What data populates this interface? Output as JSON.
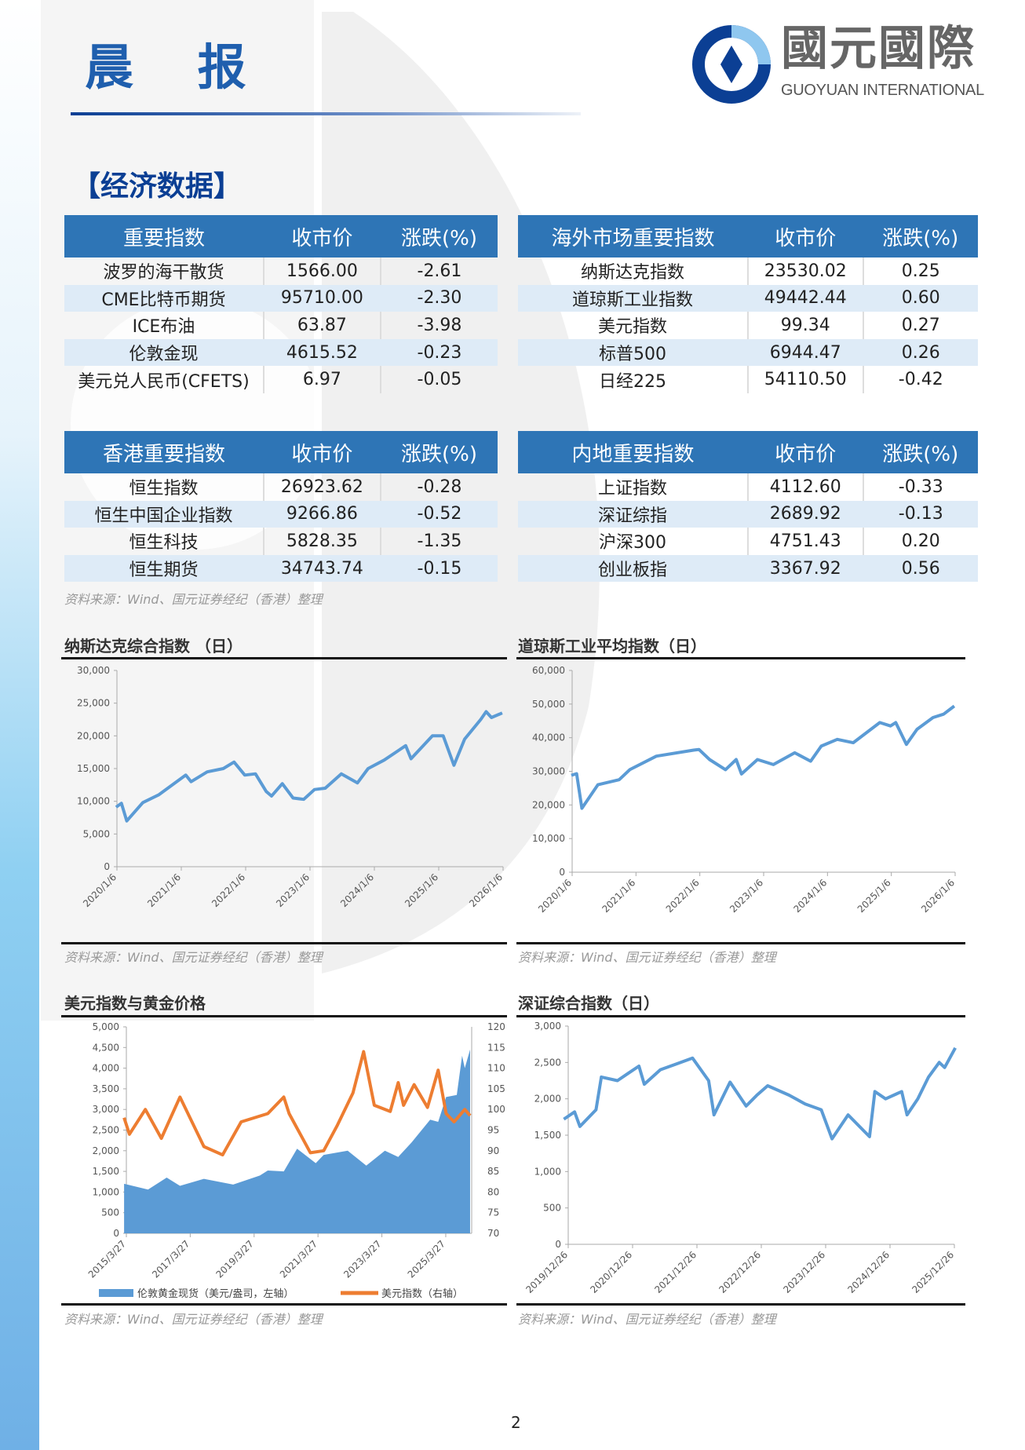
{
  "header": {
    "title": "晨 报",
    "logo_cn": "國元國際",
    "logo_en": "GUOYUAN INTERNATIONAL"
  },
  "section_title": "【经济数据】",
  "tables": [
    {
      "headers": [
        "重要指数",
        "收市价",
        "涨跌(%)"
      ],
      "rows": [
        [
          "波罗的海干散货",
          "1566.00",
          "-2.61"
        ],
        [
          "CME比特币期货",
          "95710.00",
          "-2.30"
        ],
        [
          "ICE布油",
          "63.87",
          "-3.98"
        ],
        [
          "伦敦金现",
          "4615.52",
          "-0.23"
        ],
        [
          "美元兑人民币(CFETS)",
          "6.97",
          "-0.05"
        ]
      ]
    },
    {
      "headers": [
        "海外市场重要指数",
        "收市价",
        "涨跌(%)"
      ],
      "rows": [
        [
          "纳斯达克指数",
          "23530.02",
          "0.25"
        ],
        [
          "道琼斯工业指数",
          "49442.44",
          "0.60"
        ],
        [
          "美元指数",
          "99.34",
          "0.27"
        ],
        [
          "标普500",
          "6944.47",
          "0.26"
        ],
        [
          "日经225",
          "54110.50",
          "-0.42"
        ]
      ]
    },
    {
      "headers": [
        "香港重要指数",
        "收市价",
        "涨跌(%)"
      ],
      "rows": [
        [
          "恒生指数",
          "26923.62",
          "-0.28"
        ],
        [
          "恒生中国企业指数",
          "9266.86",
          "-0.52"
        ],
        [
          "恒生科技",
          "5828.35",
          "-1.35"
        ],
        [
          "恒生期货",
          "34743.74",
          "-0.15"
        ]
      ]
    },
    {
      "headers": [
        "内地重要指数",
        "收市价",
        "涨跌(%)"
      ],
      "rows": [
        [
          "上证指数",
          "4112.60",
          "-0.33"
        ],
        [
          "深证综指",
          "2689.92",
          "-0.13"
        ],
        [
          "沪深300",
          "4751.43",
          "0.20"
        ],
        [
          "创业板指",
          "3367.92",
          "0.56"
        ]
      ]
    }
  ],
  "source": "资料来源：Wind、国元证券经纪（香港）整理",
  "page_number": "2",
  "colors": {
    "brand": "#2e75b6",
    "line": "#5b9bd5",
    "orange": "#ed7d31",
    "alt_row": "#deebf7"
  },
  "chart_data": [
    {
      "type": "line",
      "title": "纳斯达克综合指数 （日）",
      "ylim": [
        0,
        30000
      ],
      "yticks": [
        "0",
        "5,000",
        "10,000",
        "15,000",
        "20,000",
        "25,000",
        "30,000"
      ],
      "xticks": [
        "2020/1/6",
        "2021/1/6",
        "2022/1/6",
        "2023/1/6",
        "2024/1/6",
        "2025/1/6",
        "2026/1/6"
      ],
      "series": [
        {
          "points": [
            [
              "2020-01",
              9100
            ],
            [
              "2020-02",
              9700
            ],
            [
              "2020-03",
              7000
            ],
            [
              "2020-06",
              9800
            ],
            [
              "2020-09",
              11000
            ],
            [
              "2020-12",
              12800
            ],
            [
              "2021-02",
              14000
            ],
            [
              "2021-03",
              13000
            ],
            [
              "2021-06",
              14500
            ],
            [
              "2021-09",
              15000
            ],
            [
              "2021-11",
              16000
            ],
            [
              "2022-01",
              14000
            ],
            [
              "2022-03",
              14200
            ],
            [
              "2022-05",
              11500
            ],
            [
              "2022-06",
              10800
            ],
            [
              "2022-08",
              12700
            ],
            [
              "2022-10",
              10500
            ],
            [
              "2022-12",
              10300
            ],
            [
              "2023-02",
              11800
            ],
            [
              "2023-04",
              12000
            ],
            [
              "2023-07",
              14200
            ],
            [
              "2023-10",
              12800
            ],
            [
              "2023-12",
              15000
            ],
            [
              "2024-03",
              16300
            ],
            [
              "2024-07",
              18500
            ],
            [
              "2024-08",
              16500
            ],
            [
              "2024-12",
              20000
            ],
            [
              "2025-02",
              20000
            ],
            [
              "2025-04",
              15500
            ],
            [
              "2025-06",
              19500
            ],
            [
              "2025-09",
              22500
            ],
            [
              "2025-10",
              23700
            ],
            [
              "2025-11",
              22800
            ],
            [
              "2026-01",
              23500
            ]
          ]
        }
      ]
    },
    {
      "type": "line",
      "title": "道琼斯工业平均指数（日）",
      "ylim": [
        0,
        60000
      ],
      "yticks": [
        "0",
        "10,000",
        "20,000",
        "30,000",
        "40,000",
        "50,000",
        "60,000"
      ],
      "xticks": [
        "2020/1/6",
        "2021/1/6",
        "2022/1/6",
        "2023/1/6",
        "2024/1/6",
        "2025/1/6",
        "2026/1/6"
      ],
      "series": [
        {
          "points": [
            [
              "2020-01",
              28800
            ],
            [
              "2020-02",
              29300
            ],
            [
              "2020-03",
              19000
            ],
            [
              "2020-06",
              26000
            ],
            [
              "2020-10",
              27500
            ],
            [
              "2020-12",
              30500
            ],
            [
              "2021-05",
              34500
            ],
            [
              "2021-12",
              36300
            ],
            [
              "2022-01",
              36500
            ],
            [
              "2022-03",
              33500
            ],
            [
              "2022-06",
              30500
            ],
            [
              "2022-08",
              33500
            ],
            [
              "2022-09",
              29200
            ],
            [
              "2022-12",
              33500
            ],
            [
              "2023-03",
              32000
            ],
            [
              "2023-07",
              35500
            ],
            [
              "2023-10",
              33000
            ],
            [
              "2023-12",
              37500
            ],
            [
              "2024-03",
              39500
            ],
            [
              "2024-06",
              38500
            ],
            [
              "2024-11",
              44500
            ],
            [
              "2025-01",
              43500
            ],
            [
              "2025-02",
              44500
            ],
            [
              "2025-04",
              38000
            ],
            [
              "2025-06",
              42500
            ],
            [
              "2025-09",
              46000
            ],
            [
              "2025-11",
              47000
            ],
            [
              "2026-01",
              49400
            ]
          ]
        }
      ]
    },
    {
      "type": "area+line",
      "title": "美元指数与黄金价格",
      "ylim": [
        0,
        5000
      ],
      "y2lim": [
        70,
        120
      ],
      "yticks": [
        "0",
        "500",
        "1,000",
        "1,500",
        "2,000",
        "2,500",
        "3,000",
        "3,500",
        "4,000",
        "4,500",
        "5,000"
      ],
      "y2ticks": [
        "70",
        "75",
        "80",
        "85",
        "90",
        "95",
        "100",
        "105",
        "110",
        "115",
        "120"
      ],
      "xticks": [
        "2015/3/27",
        "2017/3/27",
        "2019/3/27",
        "2021/3/27",
        "2023/3/27",
        "2025/3/27"
      ],
      "legend": "bottom",
      "series": [
        {
          "name": "伦敦黄金现货（美元/盎司，左轴）",
          "axis": "left",
          "points": [
            [
              "2015-03",
              1200
            ],
            [
              "2015-12",
              1060
            ],
            [
              "2016-07",
              1350
            ],
            [
              "2016-12",
              1150
            ],
            [
              "2017-09",
              1320
            ],
            [
              "2018-08",
              1180
            ],
            [
              "2019-06",
              1400
            ],
            [
              "2019-09",
              1520
            ],
            [
              "2020-03",
              1500
            ],
            [
              "2020-08",
              2050
            ],
            [
              "2021-03",
              1700
            ],
            [
              "2021-06",
              1900
            ],
            [
              "2022-03",
              2000
            ],
            [
              "2022-10",
              1640
            ],
            [
              "2023-05",
              2000
            ],
            [
              "2023-10",
              1850
            ],
            [
              "2024-03",
              2200
            ],
            [
              "2024-10",
              2750
            ],
            [
              "2025-01",
              2700
            ],
            [
              "2025-04",
              3300
            ],
            [
              "2025-08",
              3350
            ],
            [
              "2025-10",
              4300
            ],
            [
              "2025-11",
              4000
            ],
            [
              "2026-01",
              4450
            ]
          ]
        },
        {
          "name": "美元指数（右轴）",
          "axis": "right",
          "points": [
            [
              "2015-03",
              98
            ],
            [
              "2015-05",
              94
            ],
            [
              "2015-11",
              100
            ],
            [
              "2016-05",
              93
            ],
            [
              "2016-12",
              103
            ],
            [
              "2017-09",
              91
            ],
            [
              "2018-04",
              89
            ],
            [
              "2018-11",
              97
            ],
            [
              "2019-09",
              99
            ],
            [
              "2020-03",
              103
            ],
            [
              "2020-05",
              99
            ],
            [
              "2021-01",
              89.5
            ],
            [
              "2021-06",
              90
            ],
            [
              "2021-11",
              96
            ],
            [
              "2022-05",
              104
            ],
            [
              "2022-09",
              114
            ],
            [
              "2023-01",
              101
            ],
            [
              "2023-07",
              99.5
            ],
            [
              "2023-10",
              106.5
            ],
            [
              "2023-12",
              101
            ],
            [
              "2024-04",
              106
            ],
            [
              "2024-09",
              100.5
            ],
            [
              "2025-01",
              109.5
            ],
            [
              "2025-04",
              99
            ],
            [
              "2025-07",
              97
            ],
            [
              "2025-11",
              100
            ],
            [
              "2026-01",
              98.5
            ]
          ]
        }
      ]
    },
    {
      "type": "line",
      "title": "深证综合指数（日）",
      "ylim": [
        0,
        3000
      ],
      "yticks": [
        "0",
        "500",
        "1,000",
        "1,500",
        "2,000",
        "2,500",
        "3,000"
      ],
      "xticks": [
        "2019/12/26",
        "2020/12/26",
        "2021/12/26",
        "2022/12/26",
        "2023/12/26",
        "2024/12/26",
        "2025/12/26"
      ],
      "series": [
        {
          "points": [
            [
              "2019-12",
              1720
            ],
            [
              "2020-02",
              1820
            ],
            [
              "2020-03",
              1620
            ],
            [
              "2020-06",
              1850
            ],
            [
              "2020-07",
              2300
            ],
            [
              "2020-10",
              2250
            ],
            [
              "2020-12",
              2350
            ],
            [
              "2021-02",
              2450
            ],
            [
              "2021-03",
              2200
            ],
            [
              "2021-06",
              2400
            ],
            [
              "2021-09",
              2480
            ],
            [
              "2021-12",
              2560
            ],
            [
              "2022-03",
              2250
            ],
            [
              "2022-04",
              1780
            ],
            [
              "2022-07",
              2230
            ],
            [
              "2022-10",
              1900
            ],
            [
              "2022-12",
              2050
            ],
            [
              "2023-02",
              2180
            ],
            [
              "2023-06",
              2050
            ],
            [
              "2023-09",
              1930
            ],
            [
              "2023-12",
              1850
            ],
            [
              "2024-02",
              1450
            ],
            [
              "2024-05",
              1780
            ],
            [
              "2024-09",
              1480
            ],
            [
              "2024-10",
              2100
            ],
            [
              "2024-12",
              2000
            ],
            [
              "2025-03",
              2100
            ],
            [
              "2025-04",
              1780
            ],
            [
              "2025-06",
              2000
            ],
            [
              "2025-08",
              2300
            ],
            [
              "2025-10",
              2500
            ],
            [
              "2025-11",
              2430
            ],
            [
              "2026-01",
              2700
            ]
          ]
        }
      ]
    }
  ]
}
